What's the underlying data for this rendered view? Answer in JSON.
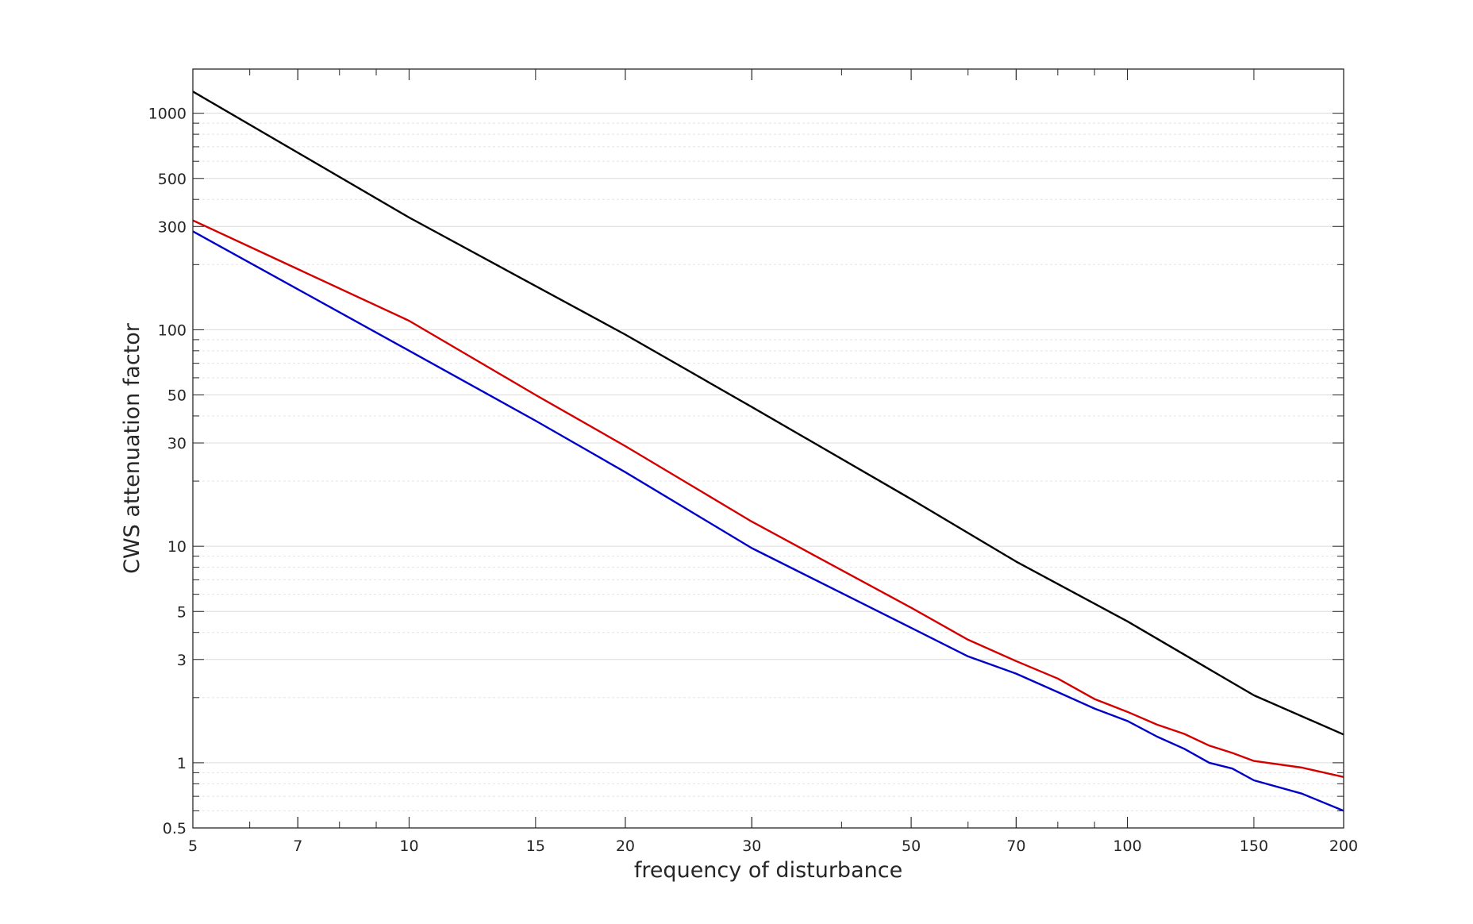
{
  "chart_data": {
    "type": "line",
    "xscale": "log",
    "yscale": "log",
    "xlabel": "frequency of disturbance",
    "ylabel": "CWS attenuation factor",
    "xlim": [
      5,
      200
    ],
    "ylim": [
      0.5,
      1600
    ],
    "grid": true,
    "legend": "none",
    "xticks": [
      5,
      7,
      10,
      15,
      20,
      30,
      50,
      70,
      100,
      150,
      200
    ],
    "yticks": [
      0.5,
      1,
      3,
      5,
      10,
      30,
      50,
      100,
      300,
      500,
      1000
    ],
    "series": [
      {
        "color": "#000000",
        "x": [
          5,
          10,
          20,
          30,
          50,
          70,
          100,
          150,
          200
        ],
        "y": [
          1260,
          330,
          95,
          44,
          16.5,
          8.5,
          4.5,
          2.05,
          1.35
        ]
      },
      {
        "color": "#d40000",
        "x": [
          5,
          10,
          15,
          20,
          30,
          50,
          60,
          70,
          80,
          90,
          100,
          110,
          120,
          130,
          140,
          150,
          175,
          200
        ],
        "y": [
          320,
          110,
          50,
          29,
          13,
          5.2,
          3.7,
          2.95,
          2.45,
          1.97,
          1.72,
          1.5,
          1.36,
          1.2,
          1.11,
          1.02,
          0.95,
          0.86
        ]
      },
      {
        "color": "#0000c8",
        "x": [
          5,
          10,
          15,
          20,
          30,
          50,
          60,
          70,
          80,
          90,
          100,
          110,
          120,
          130,
          140,
          150,
          175,
          200
        ],
        "y": [
          285,
          80,
          38,
          22,
          9.8,
          4.2,
          3.1,
          2.58,
          2.12,
          1.78,
          1.56,
          1.32,
          1.16,
          1.0,
          0.94,
          0.83,
          0.72,
          0.6
        ]
      }
    ]
  }
}
